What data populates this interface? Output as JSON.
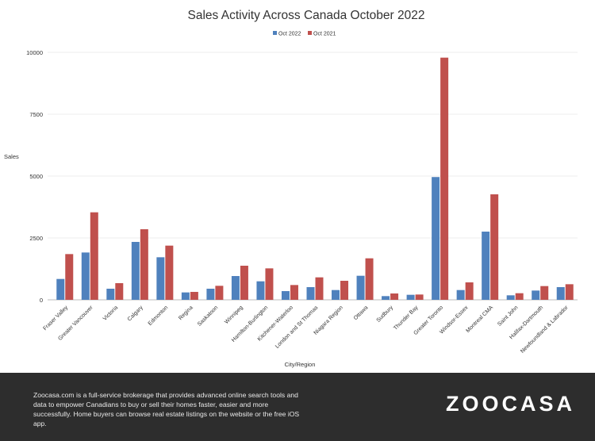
{
  "chart_data": {
    "type": "bar",
    "title": "Sales Activity Across Canada October 2022",
    "xlabel": "City/Region",
    "ylabel": "Sales",
    "ylim": [
      0,
      10000
    ],
    "yticks": [
      0,
      2500,
      5000,
      7500,
      10000
    ],
    "grid": true,
    "legend_position": "top-center",
    "categories": [
      "Fraser Valley",
      "Greater Vancouver",
      "Victoria",
      "Calgary",
      "Edmonton",
      "Regina",
      "Saskatoon",
      "Winnipeg",
      "Hamilton-Burlington",
      "Kitchener-Waterloo",
      "London and St Thomas",
      "Niagara Region",
      "Ottawa",
      "Sudbury",
      "Thunder Bay",
      "Greater Toronto",
      "Windsor-Essex",
      "Montreal CMA",
      "Saint John",
      "Halifax-Dartmouth",
      "Newfoundland & Labrador"
    ],
    "series": [
      {
        "name": "Oct 2022",
        "color": "#4f81bd",
        "values": [
          843,
          1912,
          449,
          2340,
          1720,
          299,
          449,
          961,
          748,
          352,
          513,
          395,
          972,
          150,
          203,
          4961,
          395,
          2756,
          182,
          374,
          513
        ]
      },
      {
        "name": "Oct 2021",
        "color": "#c0504d",
        "values": [
          1848,
          3536,
          673,
          2852,
          2190,
          320,
          566,
          1378,
          1271,
          598,
          908,
          769,
          1677,
          256,
          214,
          9786,
          705,
          4263,
          267,
          555,
          630
        ]
      }
    ]
  },
  "footer": {
    "text": "Zoocasa.com is a full-service brokerage that provides advanced online search tools and data to empower Canadians to buy or sell their homes faster, easier and more successfully. Home buyers can browse real estate listings on the website or the free iOS app.",
    "logo": "ZOOCASA"
  }
}
